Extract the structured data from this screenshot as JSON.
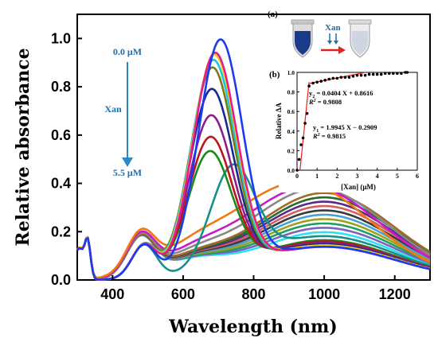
{
  "chart_data": [
    {
      "type": "line",
      "xlabel": "Wavelength (nm)",
      "ylabel": "Relative absorbance",
      "xlim": [
        300,
        1300
      ],
      "ylim": [
        0.0,
        1.1
      ],
      "x_ticks": [
        "400",
        "600",
        "800",
        "1000",
        "1200"
      ],
      "y_ticks": [
        "0.0",
        "0.2",
        "0.4",
        "0.6",
        "0.8",
        "1.0"
      ],
      "annotations": {
        "start": "0.0 μM",
        "label": "Xan",
        "end": "5.5 μM"
      },
      "series_peaks": [
        {
          "peak_nm": 705,
          "peak_abs": 1.0,
          "nir_abs": 0.25,
          "color": "#1c3bf0"
        },
        {
          "peak_nm": 690,
          "peak_abs": 0.95,
          "nir_abs": 0.25,
          "color": "#e81c8c"
        },
        {
          "peak_nm": 688,
          "peak_abs": 0.94,
          "nir_abs": 0.26,
          "color": "#f2d21a"
        },
        {
          "peak_nm": 685,
          "peak_abs": 0.92,
          "nir_abs": 0.26,
          "color": "#17c6e0"
        },
        {
          "peak_nm": 682,
          "peak_abs": 0.89,
          "nir_abs": 0.26,
          "color": "#7a7a10"
        },
        {
          "peak_nm": 680,
          "peak_abs": 0.8,
          "nir_abs": 0.27,
          "color": "#1b2a8c"
        },
        {
          "peak_nm": 678,
          "peak_abs": 0.69,
          "nir_abs": 0.28,
          "color": "#8a1f8a"
        },
        {
          "peak_nm": 676,
          "peak_abs": 0.6,
          "nir_abs": 0.29,
          "color": "#c0141c"
        },
        {
          "peak_nm": 674,
          "peak_abs": 0.54,
          "nir_abs": 0.3,
          "color": "#1a8a1a"
        },
        {
          "peak_nm": 740,
          "peak_abs": 0.45,
          "nir_abs": 0.33,
          "color": "#16908c"
        },
        {
          "peak_nm": 930,
          "peak_abs": 0.45,
          "nir_abs": 0.45,
          "color": "#f07a10"
        },
        {
          "peak_nm": 960,
          "peak_abs": 0.43,
          "nir_abs": 0.43,
          "color": "#c81cc8"
        },
        {
          "peak_nm": 980,
          "peak_abs": 0.42,
          "nir_abs": 0.42,
          "color": "#888888"
        },
        {
          "peak_nm": 1000,
          "peak_abs": 0.4,
          "nir_abs": 0.4,
          "color": "#a06a2a"
        },
        {
          "peak_nm": 1000,
          "peak_abs": 0.38,
          "nir_abs": 0.38,
          "color": "#2a6a2a"
        },
        {
          "peak_nm": 1000,
          "peak_abs": 0.36,
          "nir_abs": 0.36,
          "color": "#5a2a8a"
        },
        {
          "peak_nm": 1000,
          "peak_abs": 0.34,
          "nir_abs": 0.34,
          "color": "#d06060"
        },
        {
          "peak_nm": 1000,
          "peak_abs": 0.32,
          "nir_abs": 0.32,
          "color": "#3a3a3a"
        },
        {
          "peak_nm": 1000,
          "peak_abs": 0.3,
          "nir_abs": 0.3,
          "color": "#4aa0d0"
        },
        {
          "peak_nm": 1000,
          "peak_abs": 0.28,
          "nir_abs": 0.28,
          "color": "#a0a020"
        },
        {
          "peak_nm": 1000,
          "peak_abs": 0.26,
          "nir_abs": 0.26,
          "color": "#20a060"
        },
        {
          "peak_nm": 1000,
          "peak_abs": 0.24,
          "nir_abs": 0.24,
          "color": "#8060c0"
        },
        {
          "peak_nm": 1000,
          "peak_abs": 0.22,
          "nir_abs": 0.22,
          "color": "#30e0f0"
        }
      ]
    },
    {
      "type": "scatter",
      "panel_label": "(b)",
      "xlabel": "[Xan] (μM)",
      "ylabel": "Relative ΔA",
      "xlim": [
        0,
        6
      ],
      "ylim": [
        0.0,
        1.0
      ],
      "x_ticks": [
        "0",
        "1",
        "2",
        "3",
        "4",
        "5",
        "6"
      ],
      "y_ticks": [
        "0.0",
        "0.2",
        "0.4",
        "0.6",
        "0.8",
        "1.0"
      ],
      "points": [
        [
          0.0,
          0.0
        ],
        [
          0.1,
          0.11
        ],
        [
          0.2,
          0.26
        ],
        [
          0.3,
          0.33
        ],
        [
          0.4,
          0.48
        ],
        [
          0.5,
          0.58
        ],
        [
          0.6,
          0.86
        ],
        [
          0.8,
          0.89
        ],
        [
          1.0,
          0.9
        ],
        [
          1.2,
          0.91
        ],
        [
          1.4,
          0.92
        ],
        [
          1.6,
          0.93
        ],
        [
          1.8,
          0.94
        ],
        [
          2.0,
          0.94
        ],
        [
          2.2,
          0.95
        ],
        [
          2.4,
          0.95
        ],
        [
          2.6,
          0.95
        ],
        [
          2.8,
          0.96
        ],
        [
          3.0,
          0.97
        ],
        [
          3.2,
          0.97
        ],
        [
          3.4,
          0.97
        ],
        [
          3.6,
          0.98
        ],
        [
          3.8,
          0.98
        ],
        [
          4.0,
          0.98
        ],
        [
          4.2,
          0.98
        ],
        [
          4.4,
          0.99
        ],
        [
          4.6,
          0.99
        ],
        [
          4.8,
          0.99
        ],
        [
          5.0,
          0.99
        ],
        [
          5.2,
          0.99
        ],
        [
          5.4,
          1.0
        ],
        [
          5.5,
          1.0
        ]
      ],
      "fits": [
        {
          "x": [
            0.0,
            0.6
          ],
          "y": [
            -0.29,
            0.9
          ],
          "eq_sub": "1",
          "eq_rest": " = 1.9945 X − 0.2909",
          "r2": " = 0.9815"
        },
        {
          "x": [
            0.6,
            5.5
          ],
          "y": [
            0.886,
            1.084
          ],
          "eq_sub": "2",
          "eq_rest": " = 0.0404 X + 0.8616",
          "r2": " = 0.9808"
        }
      ]
    }
  ],
  "inset_a": {
    "panel_label": "(a)",
    "label": "Xan"
  }
}
